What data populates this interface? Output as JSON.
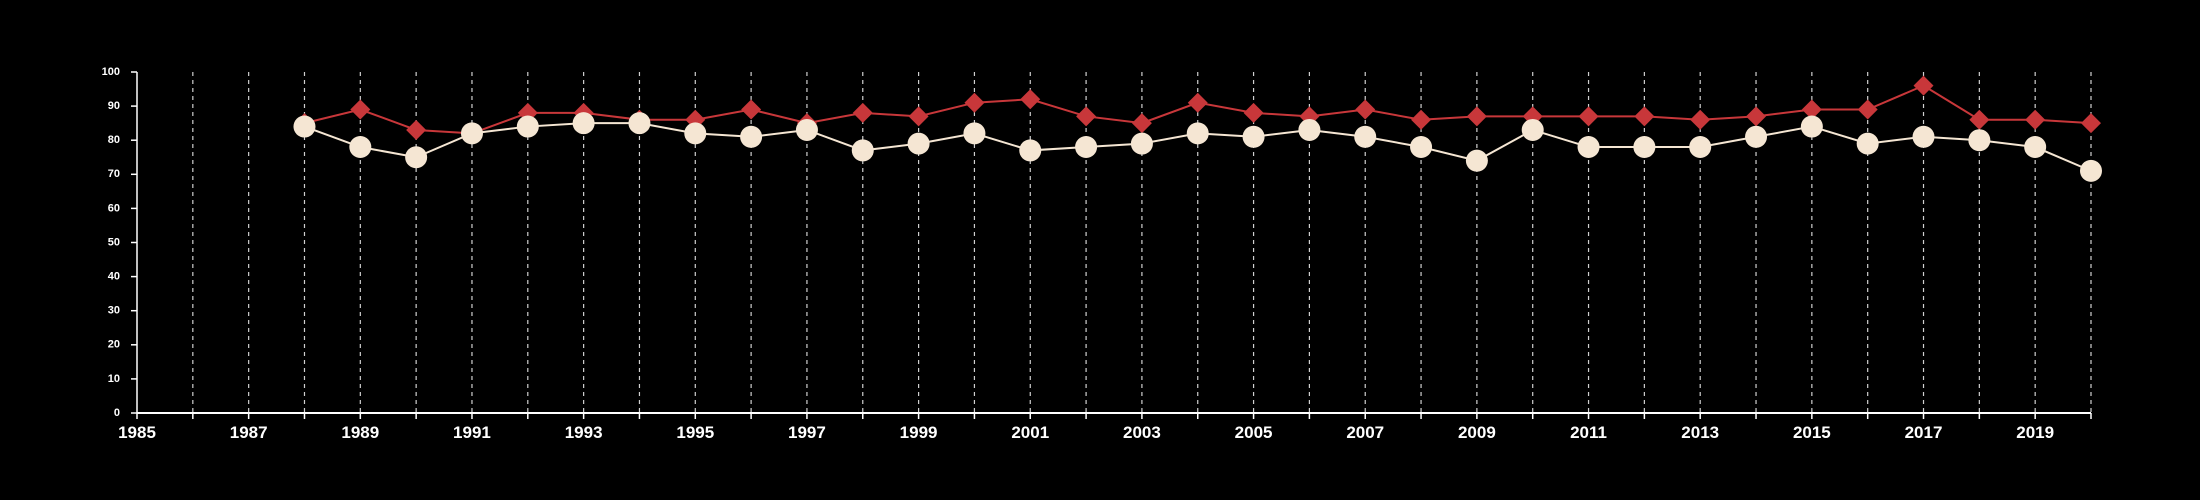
{
  "chart_data": {
    "type": "line",
    "x_range": [
      1985,
      2020
    ],
    "ylim": [
      0,
      100
    ],
    "yticks": [
      0,
      10,
      20,
      30,
      40,
      50,
      60,
      70,
      80,
      90,
      100
    ],
    "xticks_labeled": [
      1985,
      1987,
      1989,
      1991,
      1993,
      1995,
      1997,
      1999,
      2001,
      2003,
      2005,
      2007,
      2009,
      2011,
      2013,
      2015,
      2017,
      2019
    ],
    "grid": "vertical dashed at every year",
    "legend": "none",
    "x": [
      1988,
      1989,
      1990,
      1991,
      1992,
      1993,
      1994,
      1995,
      1996,
      1997,
      1998,
      1999,
      2000,
      2001,
      2002,
      2003,
      2004,
      2005,
      2006,
      2007,
      2008,
      2009,
      2010,
      2011,
      2012,
      2013,
      2014,
      2015,
      2016,
      2017,
      2018,
      2019,
      2020
    ],
    "series": [
      {
        "marker": "diamond",
        "color": "#c8373a",
        "values": [
          85,
          89,
          83,
          82,
          88,
          88,
          86,
          86,
          89,
          85,
          88,
          87,
          91,
          92,
          87,
          85,
          91,
          88,
          87,
          89,
          86,
          87,
          87,
          87,
          87,
          86,
          87,
          89,
          89,
          96,
          86,
          86,
          85
        ]
      },
      {
        "marker": "circle",
        "color": "#f5e6d3",
        "values": [
          84,
          78,
          75,
          82,
          84,
          85,
          85,
          82,
          81,
          83,
          77,
          79,
          82,
          77,
          78,
          79,
          82,
          81,
          83,
          81,
          78,
          74,
          83,
          78,
          78,
          78,
          81,
          84,
          79,
          81,
          80,
          78,
          71
        ]
      }
    ]
  }
}
